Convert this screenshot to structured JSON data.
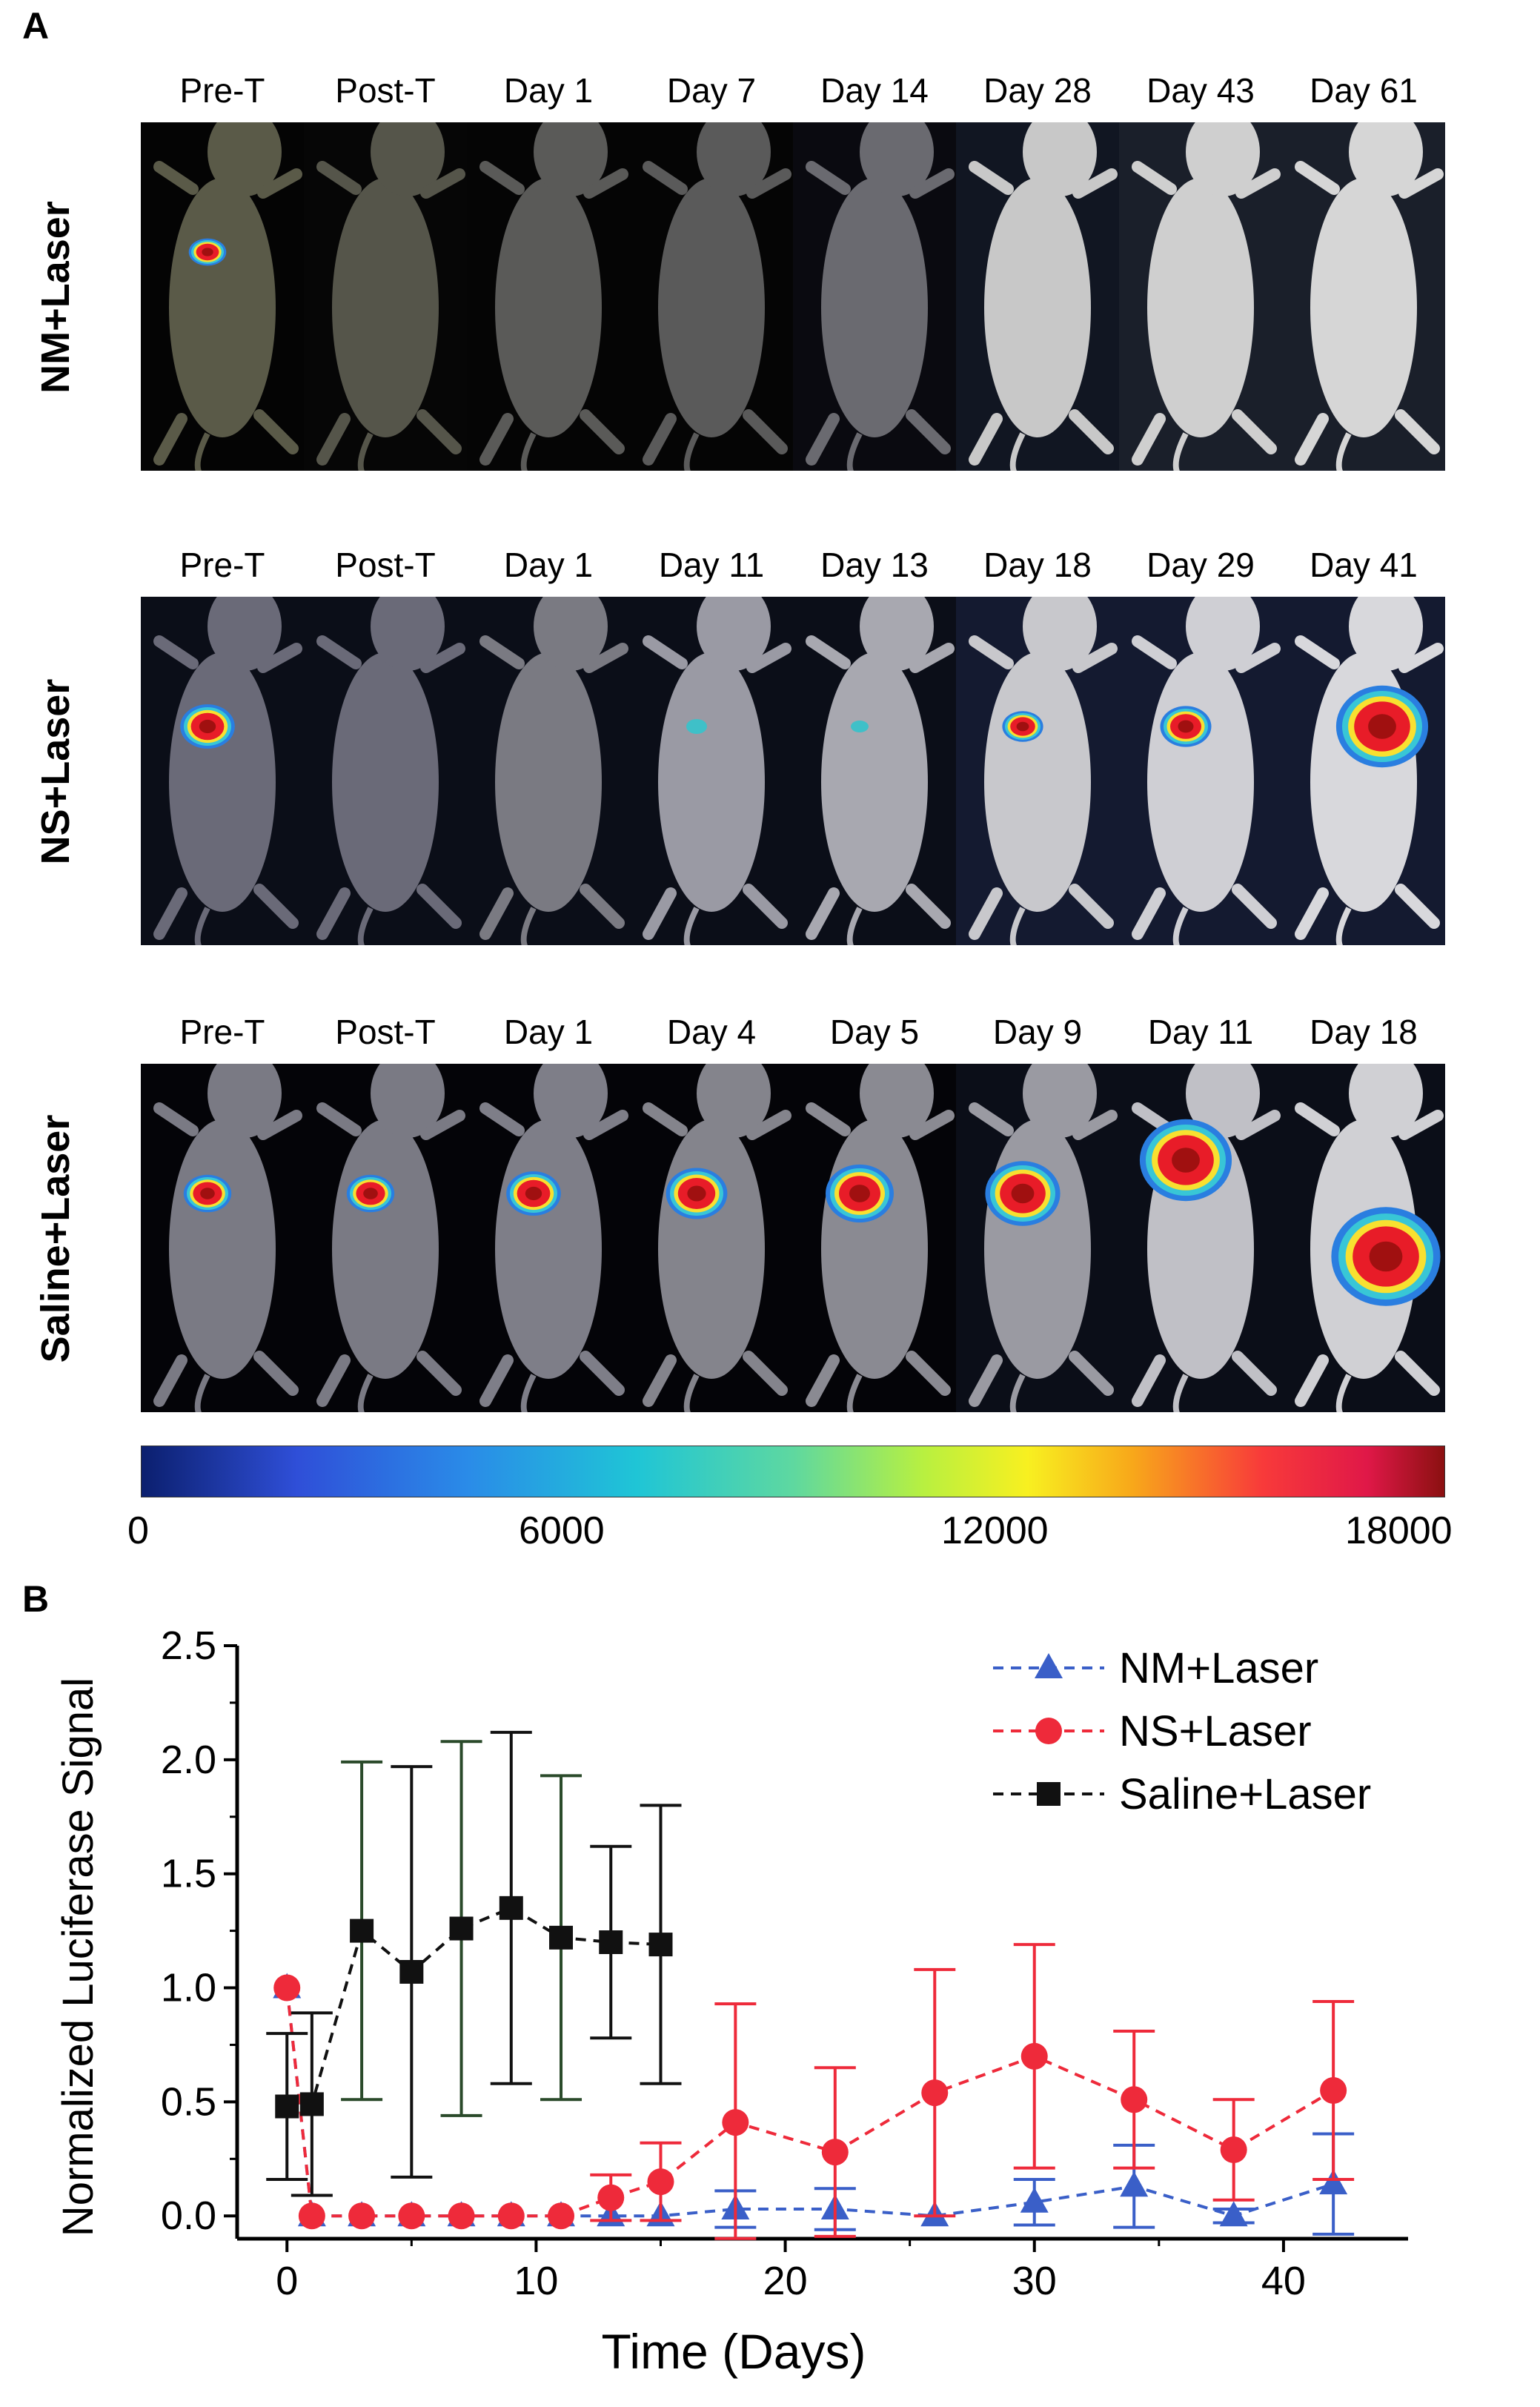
{
  "panel_a": {
    "letter": "A",
    "rows": [
      {
        "label": "NM+Laser",
        "days": [
          "Pre-T",
          "Post-T",
          "Day 1",
          "Day 7",
          "Day 14",
          "Day 28",
          "Day 43",
          "Day 61"
        ]
      },
      {
        "label": "NS+Laser",
        "days": [
          "Pre-T",
          "Post-T",
          "Day 1",
          "Day 11",
          "Day 13",
          "Day 18",
          "Day 29",
          "Day 41"
        ]
      },
      {
        "label": "Saline+Laser",
        "days": [
          "Pre-T",
          "Post-T",
          "Day 1",
          "Day 4",
          "Day 5",
          "Day 9",
          "Day 11",
          "Day 18"
        ]
      }
    ],
    "colorbar": {
      "ticks": [
        "0",
        "6000",
        "12000",
        "18000"
      ]
    }
  },
  "panel_b": {
    "letter": "B"
  },
  "chart_data": {
    "type": "line",
    "xlabel": "Time (Days)",
    "ylabel": "Normalized Luciferase Signal",
    "xlim": [
      -2,
      45
    ],
    "ylim": [
      -0.1,
      2.5
    ],
    "xticks": [
      "0",
      "10",
      "20",
      "30",
      "40"
    ],
    "yticks": [
      "0.0",
      "0.5",
      "1.0",
      "1.5",
      "2.0",
      "2.5"
    ],
    "legend_position": "top-right",
    "series": [
      {
        "name": "NM+Laser",
        "color": "#3a5fc8",
        "marker": "triangle",
        "x": [
          0,
          1,
          3,
          5,
          7,
          9,
          11,
          13,
          15,
          18,
          22,
          26,
          30,
          34,
          38,
          42
        ],
        "y": [
          1.0,
          0.0,
          0.0,
          0.0,
          0.0,
          0.0,
          0.0,
          0.0,
          0.0,
          0.03,
          0.03,
          0.0,
          0.06,
          0.13,
          0.0,
          0.14
        ],
        "err": [
          0.0,
          0.0,
          0.0,
          0.0,
          0.0,
          0.0,
          0.0,
          0.0,
          0.0,
          0.08,
          0.09,
          0.0,
          0.1,
          0.18,
          0.03,
          0.22
        ]
      },
      {
        "name": "NS+Laser",
        "color": "#ee2a3a",
        "marker": "circle",
        "x": [
          0,
          1,
          3,
          5,
          7,
          9,
          11,
          13,
          15,
          18,
          22,
          26,
          30,
          34,
          38,
          42
        ],
        "y": [
          1.0,
          0.0,
          0.0,
          0.0,
          0.0,
          0.0,
          0.0,
          0.08,
          0.15,
          0.41,
          0.28,
          0.54,
          0.7,
          0.51,
          0.29,
          0.55
        ],
        "err": [
          0.0,
          0.0,
          0.0,
          0.0,
          0.0,
          0.0,
          0.0,
          0.1,
          0.17,
          0.52,
          0.37,
          0.54,
          0.49,
          0.3,
          0.22,
          0.39
        ]
      },
      {
        "name": "Saline+Laser",
        "color": "#111111",
        "marker": "square",
        "x": [
          0,
          1,
          3,
          5,
          7,
          9,
          11,
          13,
          15
        ],
        "y": [
          0.48,
          0.49,
          1.25,
          1.07,
          1.26,
          1.35,
          1.22,
          1.2,
          1.19
        ],
        "err": [
          0.32,
          0.4,
          0.74,
          0.9,
          0.82,
          0.77,
          0.71,
          0.42,
          0.61
        ]
      }
    ]
  }
}
